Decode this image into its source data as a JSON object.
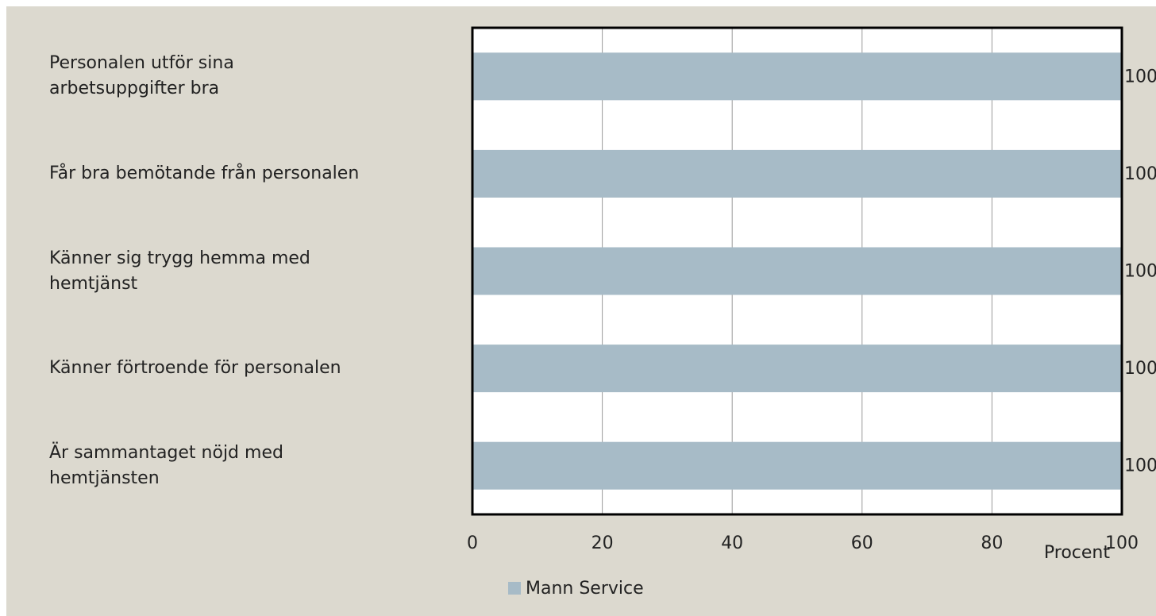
{
  "chart_data": {
    "type": "barh",
    "categories": [
      "Personalen utför sina\narbetsuppgifter bra",
      "Får bra bemötande från personalen",
      "Känner sig trygg hemma med\nhemtjänst",
      "Känner förtroende för personalen",
      "Är sammantaget nöjd med\nhemtjänsten"
    ],
    "series": [
      {
        "name": "Mann Service",
        "color": "#a7bbc7",
        "values": [
          100,
          100,
          100,
          100,
          100
        ]
      }
    ],
    "xlabel": "Procent",
    "xlim": [
      0,
      100
    ],
    "xticks": [
      0,
      20,
      40,
      60,
      80,
      100
    ],
    "grid": true,
    "legend": "bottom"
  }
}
